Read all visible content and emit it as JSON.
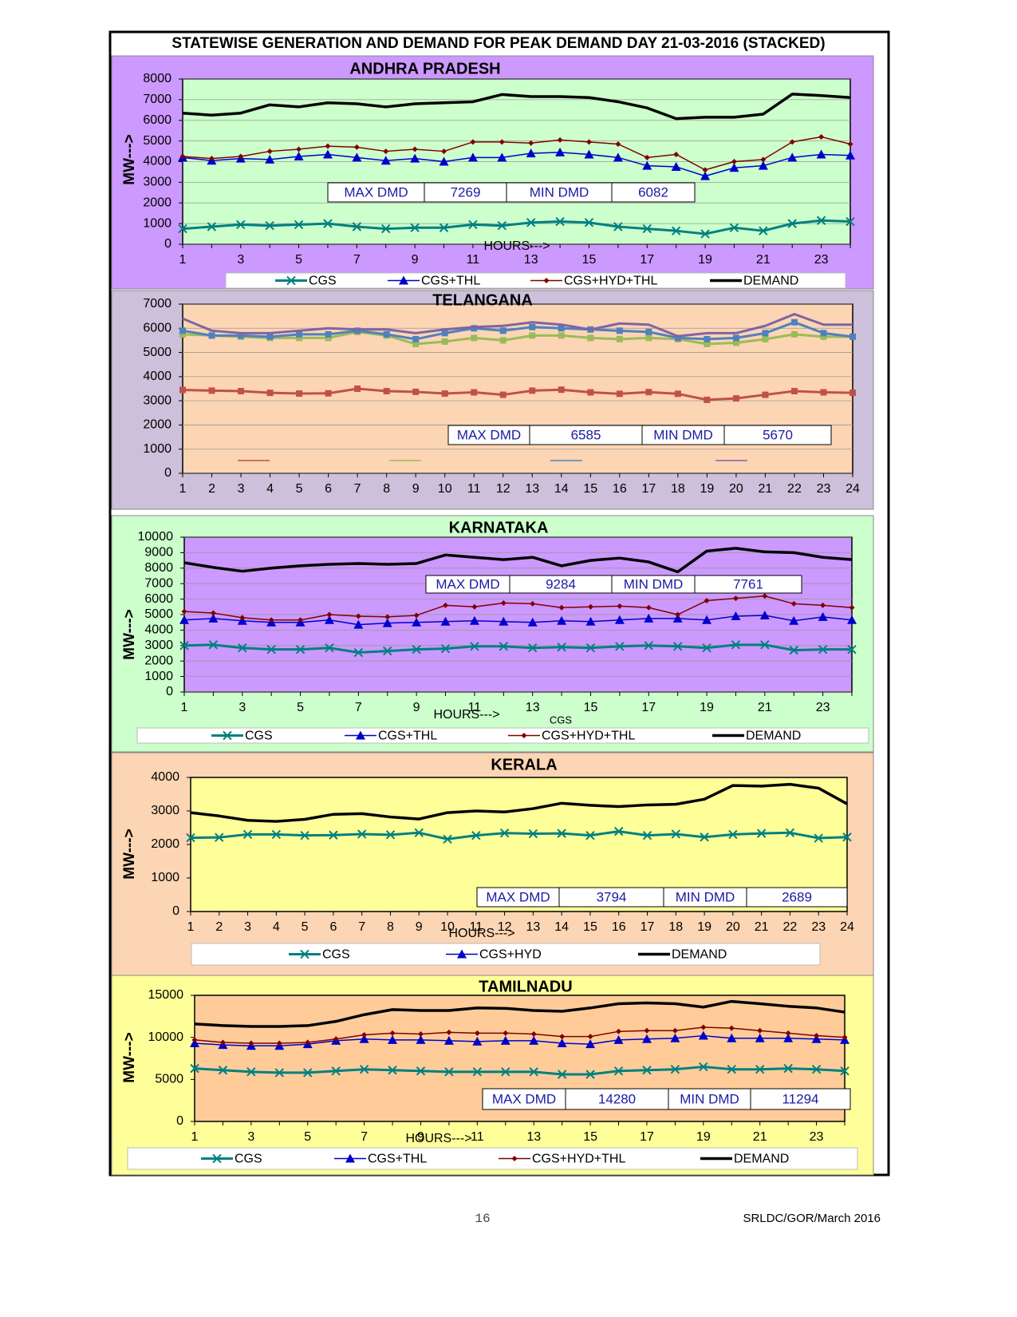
{
  "title": "STATEWISE GENERATION AND DEMAND FOR PEAK DEMAND DAY 21-03-2016 (STACKED)",
  "footer": {
    "page": "16",
    "ref": "SRLDC/GOR/March 2016"
  },
  "chart_data": [
    {
      "type": "line",
      "title": "ANDHRA PRADESH",
      "ylabel": "MW--->",
      "xlabel": "HOURS--->",
      "categories": [
        1,
        null,
        3,
        null,
        5,
        null,
        7,
        null,
        9,
        null,
        11,
        null,
        13,
        null,
        15,
        null,
        17,
        null,
        19,
        null,
        21,
        null,
        23,
        null
      ],
      "ylim": [
        0,
        8000
      ],
      "yticks": [
        0,
        1000,
        2000,
        3000,
        4000,
        5000,
        6000,
        7000,
        8000
      ],
      "grid": true,
      "stats": {
        "max_label": "MAX DMD",
        "max": 7269,
        "min_label": "MIN DMD",
        "min": 6082
      },
      "series": [
        {
          "name": "CGS",
          "color": "#008080",
          "marker": "x",
          "line_width": 3,
          "values": [
            750,
            850,
            950,
            900,
            950,
            1000,
            850,
            750,
            800,
            800,
            950,
            900,
            1050,
            1100,
            1050,
            850,
            750,
            650,
            500,
            800,
            650,
            1000,
            1150,
            1100
          ]
        },
        {
          "name": "CGS+THL",
          "color": "#0000cc",
          "marker": "triangle",
          "line_width": 1.5,
          "values": [
            4200,
            4050,
            4150,
            4100,
            4250,
            4350,
            4200,
            4050,
            4150,
            4000,
            4200,
            4200,
            4400,
            4450,
            4350,
            4200,
            3800,
            3750,
            3300,
            3700,
            3800,
            4200,
            4350,
            4300
          ]
        },
        {
          "name": "CGS+HYD+THL",
          "color": "#800000",
          "marker": "diamond",
          "line_width": 1.5,
          "values": [
            4250,
            4150,
            4250,
            4500,
            4600,
            4750,
            4700,
            4500,
            4600,
            4500,
            4950,
            4950,
            4900,
            5050,
            4950,
            4850,
            4200,
            4350,
            3600,
            4000,
            4100,
            4950,
            5200,
            4850
          ]
        },
        {
          "name": "DEMAND",
          "color": "#000000",
          "marker": "none",
          "line_width": 3.5,
          "values": [
            6350,
            6250,
            6350,
            6750,
            6650,
            6850,
            6800,
            6650,
            6800,
            6850,
            6900,
            7250,
            7150,
            7150,
            7100,
            6900,
            6600,
            6082,
            6150,
            6150,
            6300,
            7269,
            7200,
            7100
          ]
        }
      ]
    },
    {
      "type": "line",
      "title": "TELANGANA",
      "categories": [
        1,
        2,
        3,
        4,
        5,
        6,
        7,
        8,
        9,
        10,
        11,
        12,
        13,
        14,
        15,
        16,
        17,
        18,
        19,
        20,
        21,
        22,
        23,
        24
      ],
      "ylim": [
        0,
        7000
      ],
      "yticks": [
        0,
        1000,
        2000,
        3000,
        4000,
        5000,
        6000,
        7000
      ],
      "grid": true,
      "stats": {
        "max_label": "MAX DMD",
        "max": 6585,
        "min_label": "MIN DMD",
        "min": 5670
      },
      "series": [
        {
          "color": "#c0504d",
          "marker": "square",
          "line_width": 3,
          "values": [
            3450,
            3420,
            3400,
            3330,
            3300,
            3310,
            3500,
            3400,
            3370,
            3300,
            3350,
            3250,
            3420,
            3460,
            3350,
            3290,
            3360,
            3290,
            3040,
            3100,
            3250,
            3400,
            3350,
            3330
          ]
        },
        {
          "color": "#9bbb59",
          "marker": "square",
          "line_width": 3,
          "values": [
            5750,
            5700,
            5650,
            5600,
            5600,
            5600,
            5850,
            5700,
            5350,
            5450,
            5600,
            5500,
            5700,
            5700,
            5600,
            5550,
            5600,
            5550,
            5350,
            5400,
            5550,
            5750,
            5650,
            5650
          ]
        },
        {
          "color": "#4f81bd",
          "marker": "square",
          "line_width": 3,
          "values": [
            5900,
            5700,
            5700,
            5650,
            5750,
            5750,
            5900,
            5750,
            5550,
            5800,
            6000,
            5900,
            6050,
            6000,
            5950,
            5900,
            5850,
            5600,
            5550,
            5600,
            5800,
            6250,
            5800,
            5650
          ]
        },
        {
          "color": "#8064a2",
          "marker": "none",
          "line_width": 3,
          "values": [
            6400,
            5900,
            5800,
            5800,
            5900,
            6000,
            5950,
            5950,
            5800,
            5950,
            6050,
            6100,
            6250,
            6150,
            5950,
            6200,
            6150,
            5670,
            5800,
            5800,
            6100,
            6585,
            6150,
            6150
          ]
        }
      ]
    },
    {
      "type": "line",
      "title": "KARNATAKA",
      "ylabel": "MW--->",
      "xlabel": "HOURS--->",
      "annotation": "CGS",
      "categories": [
        1,
        null,
        3,
        null,
        5,
        null,
        7,
        null,
        9,
        null,
        11,
        null,
        13,
        null,
        15,
        null,
        17,
        null,
        19,
        null,
        21,
        null,
        23,
        null
      ],
      "ylim": [
        0,
        10000
      ],
      "yticks": [
        0,
        1000,
        2000,
        3000,
        4000,
        5000,
        6000,
        7000,
        8000,
        9000,
        10000
      ],
      "grid": true,
      "stats": {
        "max_label": "MAX DMD",
        "max": 9284,
        "min_label": "MIN DMD",
        "min": 7761
      },
      "series": [
        {
          "name": "CGS",
          "color": "#008080",
          "marker": "x",
          "line_width": 3,
          "values": [
            3000,
            3050,
            2850,
            2750,
            2750,
            2850,
            2550,
            2650,
            2750,
            2800,
            2950,
            2950,
            2850,
            2900,
            2850,
            2950,
            3000,
            2950,
            2850,
            3050,
            3050,
            2700,
            2750,
            2750
          ]
        },
        {
          "name": "CGS+THL",
          "color": "#0000cc",
          "marker": "triangle",
          "line_width": 1.5,
          "values": [
            4650,
            4750,
            4600,
            4500,
            4500,
            4650,
            4350,
            4450,
            4500,
            4550,
            4600,
            4550,
            4500,
            4600,
            4550,
            4650,
            4750,
            4750,
            4650,
            4900,
            4950,
            4600,
            4850,
            4650
          ]
        },
        {
          "name": "CGS+HYD+THL",
          "color": "#800000",
          "marker": "diamond",
          "line_width": 1.5,
          "values": [
            5200,
            5100,
            4800,
            4650,
            4650,
            5000,
            4900,
            4850,
            4950,
            5600,
            5500,
            5750,
            5700,
            5450,
            5500,
            5550,
            5450,
            5000,
            5900,
            6050,
            6200,
            5700,
            5600,
            5450
          ]
        },
        {
          "name": "DEMAND",
          "color": "#000000",
          "marker": "none",
          "line_width": 3.5,
          "values": [
            8350,
            8050,
            7800,
            8000,
            8150,
            8250,
            8300,
            8250,
            8300,
            8850,
            8700,
            8550,
            8700,
            8150,
            8500,
            8650,
            8400,
            7761,
            9100,
            9284,
            9050,
            9000,
            8700,
            8550
          ]
        }
      ]
    },
    {
      "type": "line",
      "title": "KERALA",
      "ylabel": "MW--->",
      "xlabel": "HOURS--->",
      "categories": [
        1,
        2,
        3,
        4,
        5,
        6,
        7,
        8,
        9,
        10,
        11,
        12,
        13,
        14,
        15,
        16,
        17,
        18,
        19,
        20,
        21,
        22,
        23,
        24
      ],
      "ylim": [
        0,
        4000
      ],
      "yticks": [
        0,
        1000,
        2000,
        3000,
        4000
      ],
      "grid": false,
      "stats": {
        "max_label": "MAX DMD",
        "max": 3794,
        "min_label": "MIN DMD",
        "min": 2689
      },
      "series": [
        {
          "name": "CGS",
          "color": "#008080",
          "marker": "x",
          "line_width": 3,
          "values": [
            2200,
            2210,
            2300,
            2300,
            2270,
            2280,
            2310,
            2290,
            2350,
            2160,
            2270,
            2340,
            2320,
            2330,
            2270,
            2390,
            2270,
            2310,
            2220,
            2300,
            2330,
            2350,
            2190,
            2220
          ]
        },
        {
          "name": "CGS+HYD",
          "color": "#0000cc",
          "marker": "triangle",
          "line_width": 1.5,
          "values": [
            null,
            null,
            null,
            null,
            null,
            null,
            null,
            null,
            null,
            null,
            null,
            null,
            null,
            null,
            null,
            null,
            null,
            null,
            null,
            null,
            null,
            null,
            null,
            null
          ]
        },
        {
          "name": "DEMAND",
          "color": "#000000",
          "marker": "none",
          "line_width": 3.5,
          "values": [
            2950,
            2850,
            2720,
            2689,
            2750,
            2900,
            2920,
            2820,
            2760,
            2950,
            3000,
            2970,
            3070,
            3230,
            3170,
            3130,
            3180,
            3200,
            3350,
            3760,
            3740,
            3794,
            3680,
            3210
          ]
        }
      ]
    },
    {
      "type": "line",
      "title": "TAMILNADU",
      "ylabel": "MW--->",
      "xlabel": "HOURS--->",
      "categories": [
        1,
        null,
        3,
        null,
        5,
        null,
        7,
        null,
        9,
        null,
        11,
        null,
        13,
        null,
        15,
        null,
        17,
        null,
        19,
        null,
        21,
        null,
        23,
        null
      ],
      "ylim": [
        0,
        15000
      ],
      "yticks": [
        0,
        5000,
        10000,
        15000
      ],
      "grid": false,
      "stats": {
        "max_label": "MAX DMD",
        "max": 14280,
        "min_label": "MIN DMD",
        "min": 11294
      },
      "series": [
        {
          "name": "CGS",
          "color": "#008080",
          "marker": "x",
          "line_width": 3,
          "values": [
            6300,
            6100,
            5900,
            5800,
            5800,
            6000,
            6200,
            6100,
            6000,
            5900,
            5900,
            5900,
            5900,
            5600,
            5600,
            6000,
            6100,
            6200,
            6500,
            6200,
            6200,
            6300,
            6200,
            6000
          ]
        },
        {
          "name": "CGS+THL",
          "color": "#0000cc",
          "marker": "triangle",
          "line_width": 1.5,
          "values": [
            9300,
            9100,
            9000,
            9000,
            9200,
            9600,
            9800,
            9700,
            9700,
            9600,
            9500,
            9600,
            9600,
            9300,
            9200,
            9700,
            9800,
            9900,
            10200,
            9900,
            9900,
            9900,
            9800,
            9700
          ]
        },
        {
          "name": "CGS+HYD+THL",
          "color": "#800000",
          "marker": "diamond",
          "line_width": 1.5,
          "values": [
            9700,
            9400,
            9300,
            9300,
            9400,
            9800,
            10300,
            10500,
            10400,
            10600,
            10500,
            10500,
            10400,
            10100,
            10100,
            10700,
            10800,
            10800,
            11200,
            11100,
            10800,
            10500,
            10200,
            10000
          ]
        },
        {
          "name": "DEMAND",
          "color": "#000000",
          "marker": "none",
          "line_width": 3.5,
          "values": [
            11600,
            11400,
            11300,
            11294,
            11400,
            11900,
            12700,
            13300,
            13200,
            13200,
            13500,
            13450,
            13200,
            13100,
            13500,
            14000,
            14100,
            14000,
            13600,
            14280,
            14000,
            13700,
            13500,
            13000
          ]
        }
      ]
    }
  ]
}
